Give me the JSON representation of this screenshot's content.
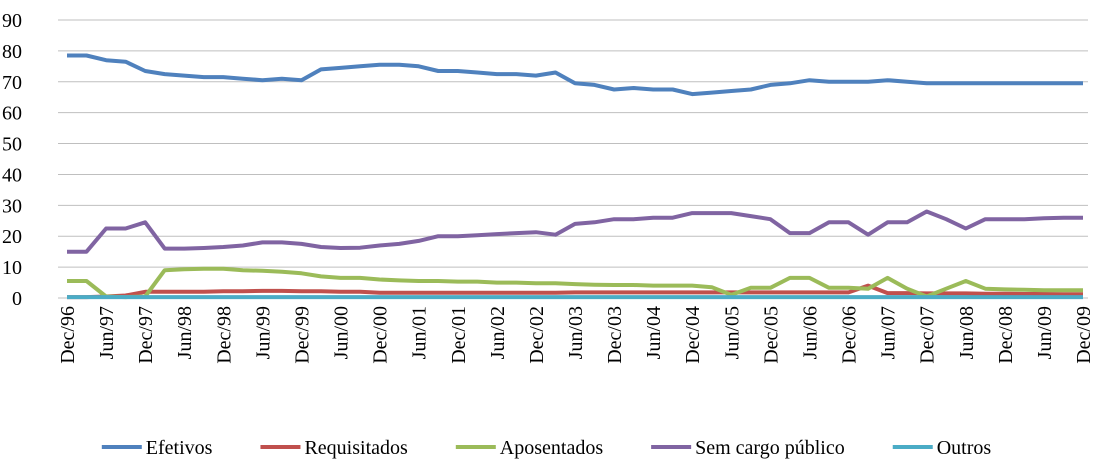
{
  "chart_data": {
    "type": "line",
    "categories": [
      "Dec/96",
      null,
      "Jun/97",
      null,
      "Dec/97",
      null,
      "Jun/98",
      null,
      "Dec/98",
      null,
      "Jun/99",
      null,
      "Dec/99",
      null,
      "Jun/00",
      null,
      "Dec/00",
      null,
      "Jun/01",
      null,
      "Dec/01",
      null,
      "Jun/02",
      null,
      "Dec/02",
      null,
      "Jun/03",
      null,
      "Dec/03",
      null,
      "Jun/04",
      null,
      "Dec/04",
      null,
      "Jun/05",
      null,
      "Dec/05",
      null,
      "Jun/06",
      null,
      "Dec/06",
      null,
      "Jun/07",
      null,
      "Dec/07",
      null,
      "Jun/08",
      null,
      "Dec/08",
      null,
      "Jun/09",
      null,
      "Dec/09"
    ],
    "series": [
      {
        "name": "Efetivos",
        "color": "#4f81bd",
        "values": [
          78.5,
          78.5,
          77,
          76.5,
          73.5,
          72.5,
          72,
          71.5,
          71.5,
          71,
          70.5,
          71,
          70.5,
          74,
          74.5,
          75,
          75.5,
          75.5,
          75,
          73.5,
          73.5,
          73,
          72.5,
          72.5,
          72,
          73,
          69.5,
          69,
          67.5,
          68,
          67.5,
          67.5,
          66,
          66.5,
          67,
          67.5,
          69,
          69.5,
          70.5,
          70,
          70,
          70,
          70.5,
          70,
          69.5,
          69.5,
          69.5,
          69.5,
          69.5,
          69.5,
          69.5,
          69.5,
          69.5
        ]
      },
      {
        "name": "Requisitados",
        "color": "#c0504d",
        "values": [
          0.3,
          0.3,
          0.5,
          0.8,
          2,
          2,
          2,
          2,
          2.2,
          2.2,
          2.3,
          2.3,
          2.2,
          2.2,
          2,
          2,
          1.7,
          1.7,
          1.7,
          1.7,
          1.7,
          1.7,
          1.7,
          1.7,
          1.7,
          1.7,
          1.8,
          1.8,
          1.8,
          1.8,
          1.8,
          1.8,
          1.8,
          1.8,
          1.8,
          1.8,
          1.8,
          1.8,
          1.8,
          1.8,
          1.8,
          4,
          1.6,
          1.6,
          1.5,
          1.5,
          1.5,
          1.4,
          1.4,
          1.3,
          1.3,
          1.2,
          1.2
        ]
      },
      {
        "name": "Aposentados",
        "color": "#9bbb59",
        "values": [
          5.5,
          5.5,
          0.5,
          0.3,
          0.5,
          9,
          9.3,
          9.5,
          9.5,
          9,
          8.8,
          8.5,
          8,
          7,
          6.5,
          6.5,
          6,
          5.7,
          5.5,
          5.5,
          5.3,
          5.3,
          5,
          5,
          4.8,
          4.8,
          4.5,
          4.3,
          4.2,
          4.2,
          4,
          4,
          4,
          3.5,
          1,
          3.3,
          3.3,
          6.5,
          6.5,
          3.3,
          3.3,
          3,
          6.5,
          3,
          0.5,
          3,
          5.5,
          3,
          2.8,
          2.7,
          2.5,
          2.5,
          2.5
        ]
      },
      {
        "name": "Sem cargo público",
        "color": "#8064a2",
        "values": [
          15,
          15,
          22.5,
          22.5,
          24.5,
          16,
          16,
          16.2,
          16.5,
          17,
          18,
          18,
          17.5,
          16.5,
          16.2,
          16.3,
          17,
          17.5,
          18.5,
          20,
          20,
          20.3,
          20.7,
          21,
          21.3,
          20.5,
          24,
          24.5,
          25.5,
          25.5,
          26,
          26,
          27.5,
          27.5,
          27.5,
          26.5,
          25.5,
          21,
          21,
          24.5,
          24.5,
          20.5,
          24.5,
          24.5,
          28,
          25.5,
          22.5,
          25.5,
          25.5,
          25.5,
          25.8,
          26,
          26
        ]
      },
      {
        "name": "Outros",
        "color": "#4bacc6",
        "values": [
          0.3,
          0.3,
          0.3,
          0.3,
          0.3,
          0.3,
          0.3,
          0.3,
          0.3,
          0.3,
          0.3,
          0.3,
          0.3,
          0.3,
          0.3,
          0.3,
          0.3,
          0.3,
          0.3,
          0.3,
          0.3,
          0.3,
          0.3,
          0.3,
          0.3,
          0.3,
          0.3,
          0.3,
          0.3,
          0.3,
          0.3,
          0.3,
          0.3,
          0.3,
          0.3,
          0.3,
          0.3,
          0.3,
          0.3,
          0.3,
          0.3,
          0.3,
          0.3,
          0.3,
          0.3,
          0.3,
          0.3,
          0.3,
          0.3,
          0.3,
          0.3,
          0.3,
          0.3
        ]
      }
    ],
    "ylim": [
      0,
      90
    ],
    "yticks": [
      0,
      10,
      20,
      30,
      40,
      50,
      60,
      70,
      80,
      90
    ],
    "grid": true,
    "legend": "bottom"
  }
}
